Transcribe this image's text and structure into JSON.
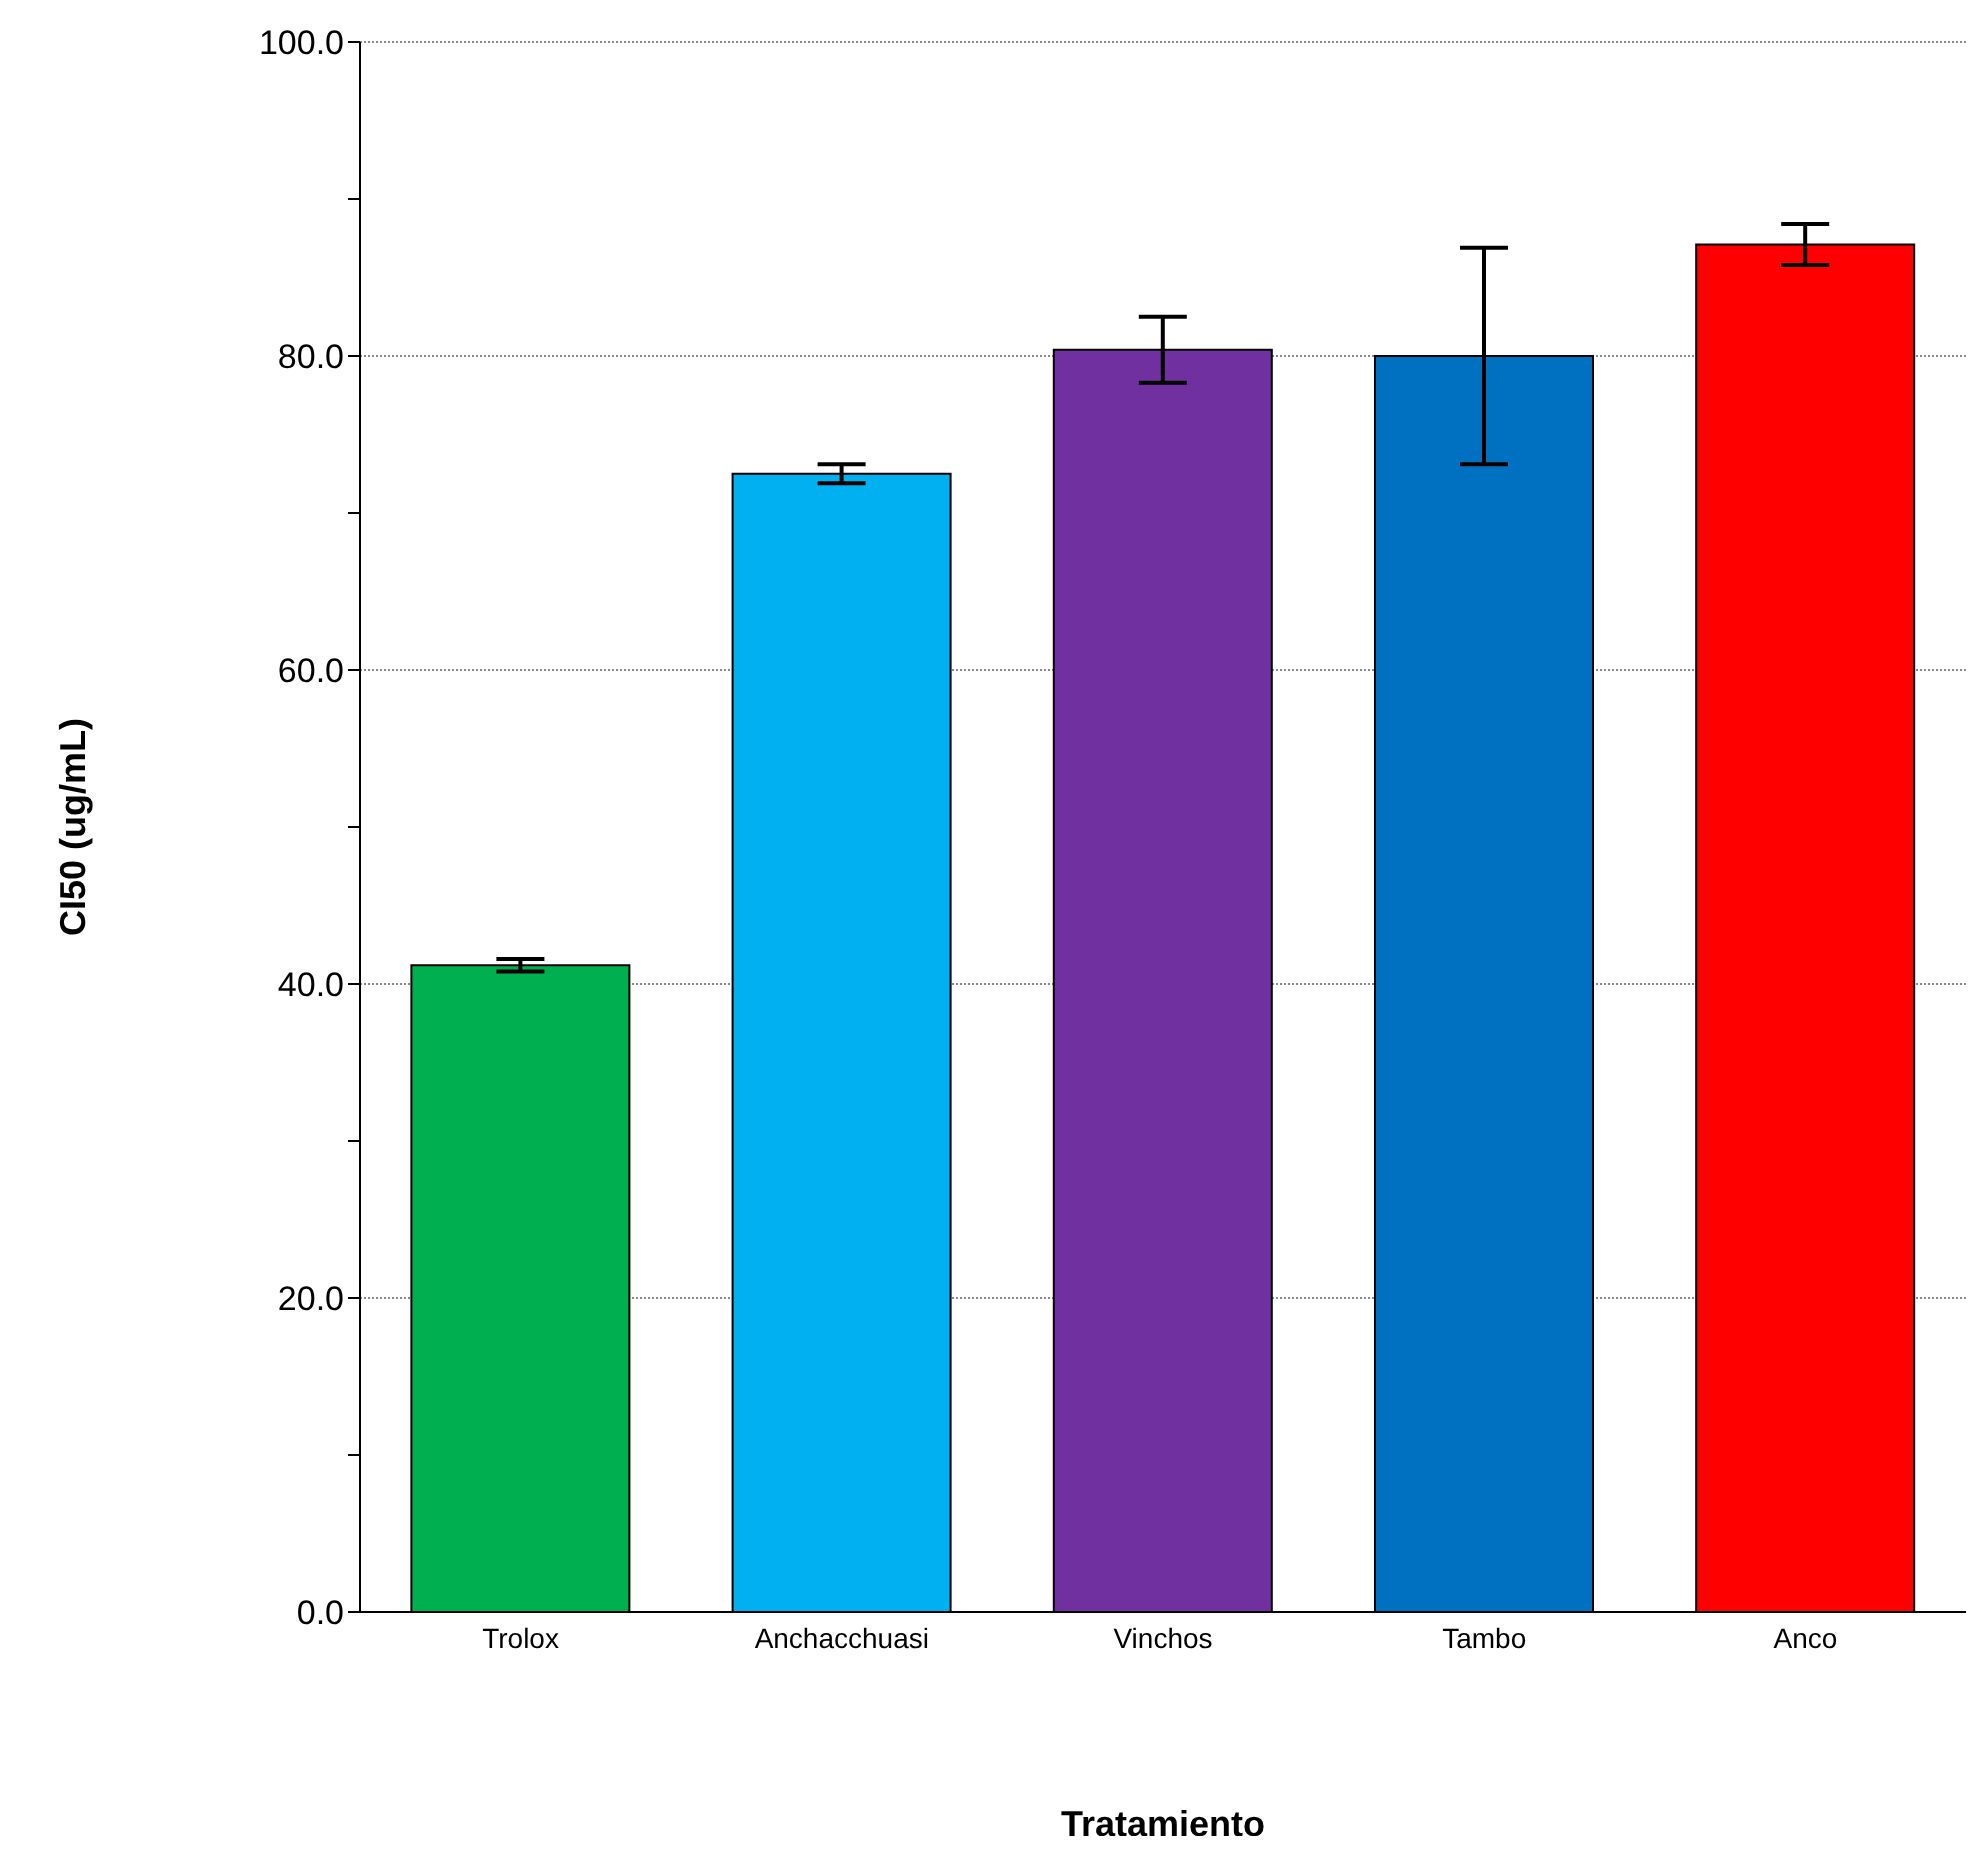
{
  "chart_data": {
    "type": "bar",
    "xlabel": "Tratamiento",
    "ylabel": "CI50 (ug/mL)",
    "categories": [
      "Trolox",
      "Anchacchuasi",
      "Vinchos",
      "Tambo",
      "Anco"
    ],
    "values": [
      41.2,
      72.5,
      80.4,
      80.0,
      87.1
    ],
    "colors": [
      "#00b050",
      "#00b0f0",
      "#7030a0",
      "#0070c0",
      "#ff0000"
    ],
    "errors": [
      0.4,
      0.6,
      2.1,
      6.9,
      1.3
    ],
    "ylim": [
      0,
      100
    ],
    "yticks": [
      {
        "value": 0,
        "label": "0.0"
      },
      {
        "value": 10,
        "label": null
      },
      {
        "value": 20,
        "label": "20.0"
      },
      {
        "value": 30,
        "label": null
      },
      {
        "value": 40,
        "label": "40.0"
      },
      {
        "value": 50,
        "label": null
      },
      {
        "value": 60,
        "label": "60.0"
      },
      {
        "value": 70,
        "label": null
      },
      {
        "value": 80,
        "label": "80.0"
      },
      {
        "value": 90,
        "label": null
      },
      {
        "value": 100,
        "label": "100.0"
      }
    ],
    "grid": "y"
  }
}
